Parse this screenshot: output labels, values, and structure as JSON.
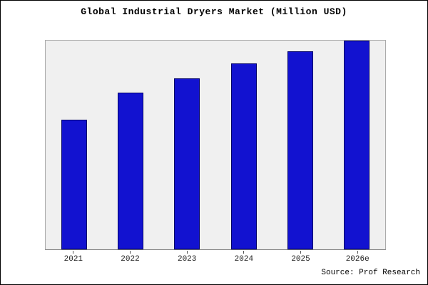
{
  "title": "Global Industrial Dryers Market (Million USD)",
  "source": "Source: Prof Research",
  "colors": {
    "bar_fill": "#1212d0",
    "bar_border": "#000066",
    "plot_background": "#f0f0f0"
  },
  "chart_data": {
    "type": "bar",
    "title": "Global Industrial Dryers Market (Million USD)",
    "categories": [
      "2021",
      "2022",
      "2023",
      "2024",
      "2025",
      "2026e"
    ],
    "values": [
      62,
      75,
      82,
      89,
      95,
      100
    ],
    "xlabel": "",
    "ylabel": "",
    "ylim": [
      0,
      100
    ],
    "grid": false,
    "legend_position": "none",
    "annotation": "Source: Prof Research"
  }
}
